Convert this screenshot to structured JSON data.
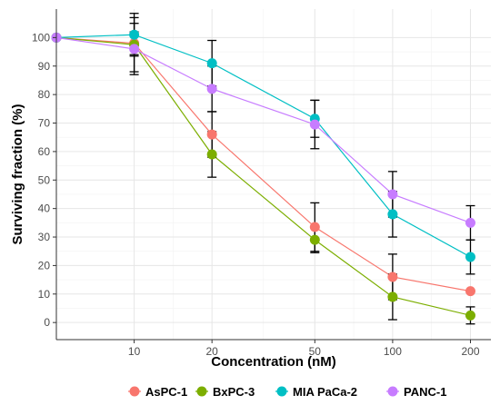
{
  "chart_data": {
    "type": "line",
    "title": "",
    "xlabel": "Concentration (nM)",
    "ylabel": "Surviving fraction (%)",
    "x_scale": "log",
    "x": [
      5,
      10,
      20,
      50,
      100,
      200
    ],
    "x_ticks": [
      10,
      20,
      50,
      100,
      200
    ],
    "x_tick_labels": [
      "10",
      "20",
      "50",
      "100",
      "200"
    ],
    "y_ticks": [
      0,
      10,
      20,
      30,
      40,
      50,
      60,
      70,
      80,
      90,
      100
    ],
    "y_tick_labels": [
      "0",
      "10",
      "20",
      "30",
      "40",
      "50",
      "60",
      "70",
      "80",
      "90",
      "100"
    ],
    "xlim": [
      5,
      240
    ],
    "ylim": [
      -6,
      110
    ],
    "grid": true,
    "legend_position": "bottom",
    "series": [
      {
        "name": "AsPC-1",
        "color": "#F8766D",
        "values": [
          100,
          98,
          66,
          33.5,
          16,
          11
        ],
        "error": [
          0,
          4,
          8,
          8.5,
          8,
          0
        ]
      },
      {
        "name": "BxPC-3",
        "color": "#7CAE00",
        "values": [
          100,
          97.5,
          59,
          29,
          9,
          2.5
        ],
        "error": [
          0,
          9.5,
          8,
          4.5,
          8,
          3
        ]
      },
      {
        "name": "MIA PaCa-2",
        "color": "#00BFC4",
        "values": [
          100,
          101,
          91,
          71.5,
          38,
          23
        ],
        "error": [
          0,
          7.5,
          8,
          6.5,
          8,
          6
        ]
      },
      {
        "name": "PANC-1",
        "color": "#C77CFF",
        "values": [
          100,
          96,
          82,
          69.5,
          45,
          35
        ],
        "error": [
          0,
          9,
          8,
          8.5,
          8,
          6
        ]
      }
    ]
  }
}
